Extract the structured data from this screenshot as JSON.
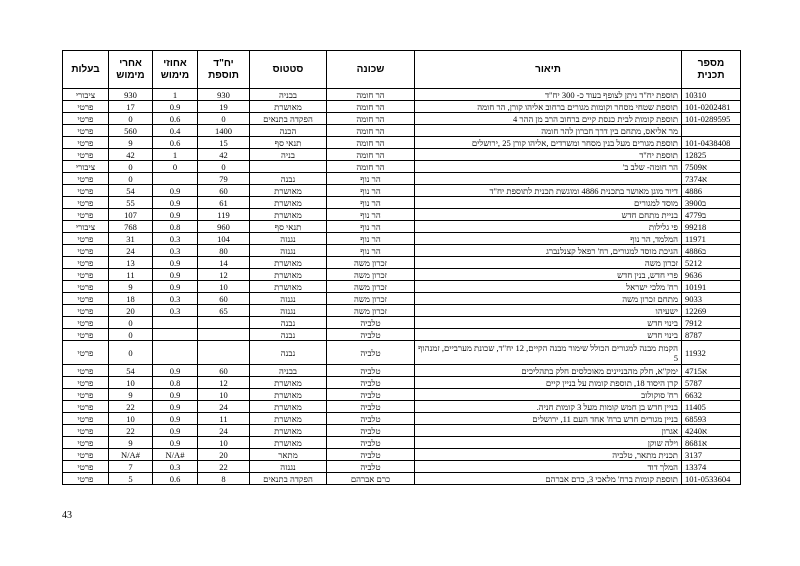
{
  "headers": [
    "מספר תכנית",
    "תיאור",
    "שכונה",
    "סטטוס",
    "יח\"ד תוספת",
    "אחוזי מימוש",
    "אחרי מימוש",
    "בעלות"
  ],
  "rows": [
    [
      "10310",
      "תוספת יח\"ד ניתן לצופף בעוד כ- 300 יח\"ד",
      "הר חומה",
      "בבניה",
      "930",
      "1",
      "930",
      "ציבורי"
    ],
    [
      "101-0202481",
      "תוספת שטחי מסחר וקומות מגורים ברחוב אליהו קורן, הר חומה",
      "הר חומה",
      "מאושרת",
      "19",
      "0.9",
      "17",
      "פרטי"
    ],
    [
      "101-0289595",
      "תוספת קומות לבית כנסת קיים ברחוב הרב מן ההר 4",
      "הר חומה",
      "הפקדה בתנאים",
      "0",
      "0.6",
      "0",
      "פרטי"
    ],
    [
      "",
      "מר אליאס, מתחם בין דרך חברון להר חומה",
      "הר חומה",
      "הכנה",
      "1400",
      "0.4",
      "560",
      "פרטי"
    ],
    [
      "101-0438408",
      "תוספת מגורים מעל בנין מסחר ומשרדים ,אליהו קורן 25 ,ירושלים",
      "הר חומה",
      "תנאי סף",
      "15",
      "0.6",
      "9",
      "פרטי"
    ],
    [
      "12825",
      "תוספת יח\"ד",
      "הר חומה",
      "בניה",
      "42",
      "1",
      "42",
      "פרטי"
    ],
    [
      "7509א",
      "הר חומה- שלב ב'",
      "הר חומה",
      "",
      "0",
      "0",
      "0",
      "ציבורי"
    ],
    [
      "7374א",
      "",
      "הר נוף",
      "נבנה",
      "79",
      "",
      "0",
      "פרטי"
    ],
    [
      "4886",
      "דיור מוגן מאושר בתכנית 4886 ומוגשת תכנית לתוספת יח\"ד",
      "הר נוף",
      "מאושרת",
      "60",
      "0.9",
      "54",
      "פרטי"
    ],
    [
      "3900ב",
      "מוסד למגורים",
      "הר נוף",
      "מאושרת",
      "61",
      "0.9",
      "55",
      "פרטי"
    ],
    [
      "4779ב",
      "בניית מתחם חדש",
      "הר נוף",
      "מאושרת",
      "119",
      "0.9",
      "107",
      "פרטי"
    ],
    [
      "99218",
      "פי גלילות",
      "הר נוף",
      "תנאי סף",
      "960",
      "0.8",
      "768",
      "ציבורי"
    ],
    [
      "11971",
      "המלמד, הר נוף",
      "הר נוף",
      "נגנזה",
      "104",
      "0.3",
      "31",
      "פרטי"
    ],
    [
      "4886ב",
      "הגיכת מוסד למגורים, רח' רפאל קצנלנברג",
      "הר נוף",
      "נגנזה",
      "80",
      "0.3",
      "24",
      "פרטי"
    ],
    [
      "5212",
      "זכרון משה",
      "זכרון משה",
      "מאושרת",
      "14",
      "0.9",
      "13",
      "פרטי"
    ],
    [
      "9636",
      "פרי חדש, בנין חדש",
      "זכרון משה",
      "מאושרת",
      "12",
      "0.9",
      "11",
      "פרטי"
    ],
    [
      "10191",
      "רח' מלכי ישראל",
      "זכרון משה",
      "מאושרת",
      "10",
      "0.9",
      "9",
      "פרטי"
    ],
    [
      "9033",
      "מתחם זכרון משה",
      "זכרון משה",
      "נגנזה",
      "60",
      "0.3",
      "18",
      "פרטי"
    ],
    [
      "12269",
      "ישעיהו",
      "זכרון משה",
      "נגנזה",
      "65",
      "0.3",
      "20",
      "פרטי"
    ],
    [
      "7912",
      "בינוי חדש",
      "טלביה",
      "נבנה",
      "",
      "",
      "0",
      "פרטי"
    ],
    [
      "8787",
      "בינוי חדש",
      "טלביה",
      "נבנה",
      "",
      "",
      "0",
      "פרטי"
    ],
    [
      "11932",
      "הקמת מבנה למגורים הכולל שימור מבנה הקיים, 12 יח\"ד, שכונת מערביים, זמנהוף 5",
      "טלביה",
      "נבנה",
      "",
      "",
      "0",
      "פרטי"
    ],
    [
      "4715א",
      "ימק\"א, חלק מהבניינים מאוכלסים חלק בתהליכים",
      "טלביה",
      "בבניה",
      "60",
      "0.9",
      "54",
      "פרטי"
    ],
    [
      "5787",
      "קרן היסוד 18, תוספת קומות על בניין קיים",
      "טלביה",
      "מאושרת",
      "12",
      "0.8",
      "10",
      "פרטי"
    ],
    [
      "6632",
      "רח' סוקולוב",
      "טלביה",
      "מאושרת",
      "10",
      "0.9",
      "9",
      "פרטי"
    ],
    [
      "11405",
      "בניין חדש בן חמש קומות מעל 3 קומות חניה.",
      "טלביה",
      "מאושרת",
      "24",
      "0.9",
      "22",
      "פרטי"
    ],
    [
      "68593",
      "בניין מגורים חדש ברח' אחד העם 11, ירושלים",
      "טלביה",
      "מאושרת",
      "11",
      "0.9",
      "10",
      "פרטי"
    ],
    [
      "4240א",
      "אגרון",
      "טלביה",
      "מאושרת",
      "24",
      "0.9",
      "22",
      "פרטי"
    ],
    [
      "8681א",
      "וילה שוקן",
      "טלביה",
      "מאושרת",
      "10",
      "0.9",
      "9",
      "פרטי"
    ],
    [
      "3137",
      "תכנית מתאר, טלביה",
      "טלביה",
      "מתאר",
      "20",
      "#N/A",
      "#N/A",
      "פרטי"
    ],
    [
      "13374",
      "המלך דוד",
      "טלביה",
      "נגנזה",
      "22",
      "0.3",
      "7",
      "פרטי"
    ],
    [
      "101-0533604",
      "תוספת קומות ברח' מלאכי 3, כרם אברהם",
      "כרם אברהם",
      "הפקדה בתנאים",
      "8",
      "0.6",
      "5",
      "פרטי"
    ]
  ],
  "page_number": "43"
}
